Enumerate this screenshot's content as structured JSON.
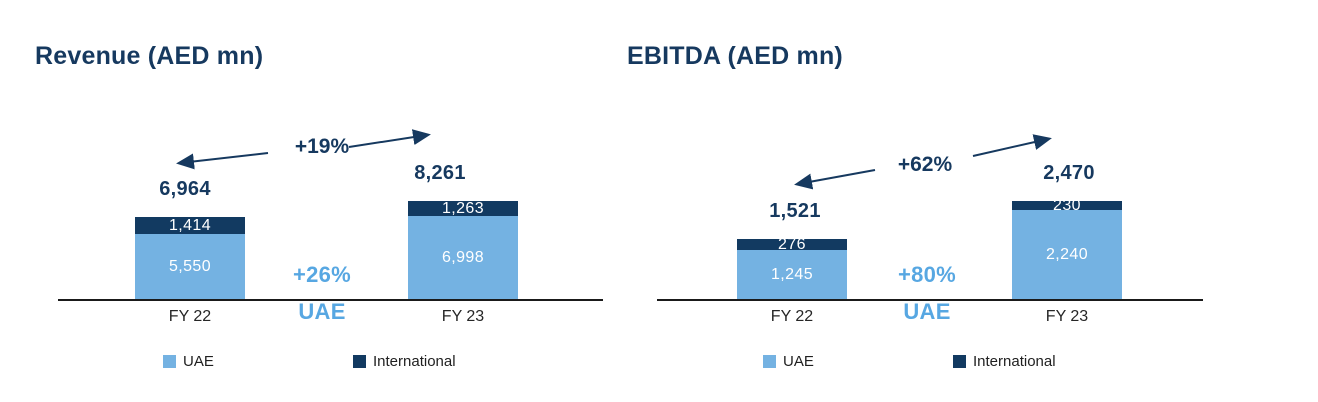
{
  "page": {
    "background": "#ffffff"
  },
  "colors": {
    "navy_text": "#16395f",
    "uae_blue": "#74b2e2",
    "international_navy": "#123a61",
    "accent_blue": "#57a7e2",
    "axis_line": "#1a1a1a",
    "tick_text": "#262626",
    "legend_text": "#1f1f1f",
    "bar_value_text": "#ffffff"
  },
  "chart_data": [
    {
      "type": "bar",
      "stacked": true,
      "title": "Revenue (AED mn)",
      "categories": [
        "FY 22",
        "FY 23"
      ],
      "series": [
        {
          "name": "UAE",
          "color": "#74b2e2",
          "values": [
            5550,
            6998
          ],
          "labels": [
            "5,550",
            "6,998"
          ]
        },
        {
          "name": "International",
          "color": "#123a61",
          "values": [
            1414,
            1263
          ],
          "labels": [
            "1,414",
            "1,263"
          ]
        }
      ],
      "totals": [
        6964,
        8261
      ],
      "total_labels": [
        "6,964",
        "8,261"
      ],
      "annotations": {
        "total_growth": "+19%",
        "segment_growth": "+26%",
        "segment_growth_target": "UAE"
      },
      "legend": [
        "UAE",
        "International"
      ],
      "legend_position": "bottom",
      "ylim": [
        0,
        8261
      ],
      "grid": false
    },
    {
      "type": "bar",
      "stacked": true,
      "title": "EBITDA (AED mn)",
      "categories": [
        "FY 22",
        "FY 23"
      ],
      "series": [
        {
          "name": "UAE",
          "color": "#74b2e2",
          "values": [
            1245,
            2240
          ],
          "labels": [
            "1,245",
            "2,240"
          ]
        },
        {
          "name": "International",
          "color": "#123a61",
          "values": [
            276,
            230
          ],
          "labels": [
            "276",
            "230"
          ]
        }
      ],
      "totals": [
        1521,
        2470
      ],
      "total_labels": [
        "1,521",
        "2,470"
      ],
      "annotations": {
        "total_growth": "+62%",
        "segment_growth": "+80%",
        "segment_growth_target": "UAE"
      },
      "legend": [
        "UAE",
        "International"
      ],
      "legend_position": "bottom",
      "ylim": [
        0,
        2470
      ],
      "grid": false
    }
  ]
}
